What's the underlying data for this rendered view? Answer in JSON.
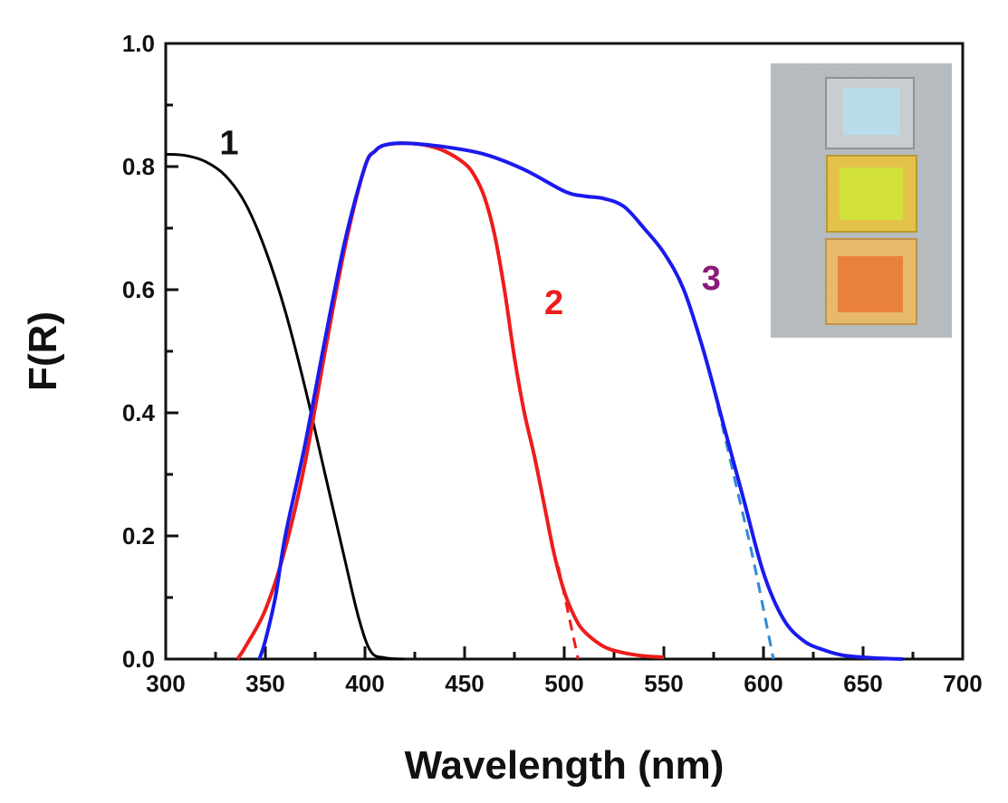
{
  "chart_data": {
    "type": "line",
    "title": "",
    "xlabel": "Wavelength (nm)",
    "ylabel": "F(R)",
    "xlim": [
      300,
      700
    ],
    "ylim": [
      0.0,
      1.0
    ],
    "xticks": [
      "300",
      "350",
      "400",
      "450",
      "500",
      "550",
      "600",
      "650",
      "700"
    ],
    "yticks": [
      "0.0",
      "0.2",
      "0.4",
      "0.6",
      "0.8",
      "1.0"
    ],
    "grid": false,
    "inset": "photo of three sample films (pale blue, yellow, orange), top-right",
    "series": [
      {
        "name": "1",
        "color": "#000000",
        "label_at": [
          327,
          0.82
        ],
        "points": [
          [
            300,
            0.82
          ],
          [
            310,
            0.818
          ],
          [
            320,
            0.808
          ],
          [
            330,
            0.785
          ],
          [
            340,
            0.74
          ],
          [
            350,
            0.665
          ],
          [
            360,
            0.565
          ],
          [
            370,
            0.44
          ],
          [
            380,
            0.3
          ],
          [
            390,
            0.16
          ],
          [
            397,
            0.065
          ],
          [
            403,
            0.012
          ],
          [
            410,
            0.002
          ],
          [
            420,
            0.0
          ]
        ]
      },
      {
        "name": "2",
        "color": "#ee1c1c",
        "label_at": [
          490,
          0.56
        ],
        "points": [
          [
            336,
            0.0
          ],
          [
            340,
            0.02
          ],
          [
            350,
            0.08
          ],
          [
            360,
            0.18
          ],
          [
            370,
            0.32
          ],
          [
            380,
            0.5
          ],
          [
            390,
            0.67
          ],
          [
            400,
            0.8
          ],
          [
            405,
            0.825
          ],
          [
            410,
            0.835
          ],
          [
            420,
            0.838
          ],
          [
            430,
            0.835
          ],
          [
            440,
            0.825
          ],
          [
            450,
            0.805
          ],
          [
            455,
            0.785
          ],
          [
            460,
            0.75
          ],
          [
            465,
            0.69
          ],
          [
            470,
            0.6
          ],
          [
            475,
            0.49
          ],
          [
            480,
            0.4
          ],
          [
            485,
            0.33
          ],
          [
            490,
            0.25
          ],
          [
            495,
            0.17
          ],
          [
            500,
            0.11
          ],
          [
            505,
            0.07
          ],
          [
            510,
            0.045
          ],
          [
            520,
            0.02
          ],
          [
            530,
            0.01
          ],
          [
            540,
            0.005
          ],
          [
            550,
            0.003
          ]
        ],
        "extrapolation": [
          [
            497,
            0.15
          ],
          [
            507,
            0.0
          ]
        ]
      },
      {
        "name": "3",
        "color": "#1a1aee",
        "label_at": [
          569,
          0.6
        ],
        "points": [
          [
            347,
            0.0
          ],
          [
            350,
            0.03
          ],
          [
            355,
            0.1
          ],
          [
            360,
            0.2
          ],
          [
            370,
            0.35
          ],
          [
            380,
            0.52
          ],
          [
            390,
            0.68
          ],
          [
            400,
            0.8
          ],
          [
            405,
            0.825
          ],
          [
            410,
            0.835
          ],
          [
            420,
            0.838
          ],
          [
            440,
            0.832
          ],
          [
            460,
            0.82
          ],
          [
            480,
            0.795
          ],
          [
            500,
            0.76
          ],
          [
            510,
            0.752
          ],
          [
            520,
            0.748
          ],
          [
            530,
            0.735
          ],
          [
            540,
            0.7
          ],
          [
            550,
            0.66
          ],
          [
            560,
            0.6
          ],
          [
            570,
            0.5
          ],
          [
            580,
            0.38
          ],
          [
            590,
            0.26
          ],
          [
            600,
            0.14
          ],
          [
            610,
            0.065
          ],
          [
            620,
            0.03
          ],
          [
            630,
            0.015
          ],
          [
            640,
            0.006
          ],
          [
            650,
            0.003
          ],
          [
            660,
            0.001
          ],
          [
            670,
            0.0
          ]
        ],
        "extrapolation": [
          [
            575,
            0.44
          ],
          [
            585,
            0.3
          ],
          [
            595,
            0.16
          ],
          [
            605,
            0.0
          ]
        ]
      }
    ]
  },
  "colors": {
    "axis": "#111111",
    "label_1": "#111111",
    "label_2": "#ee1c1c",
    "label_3": "#8b1a7a",
    "extrap_2": "#ee1c1c",
    "extrap_3": "#2e8bd6"
  },
  "inset": {
    "films": [
      "pale-blue",
      "yellow",
      "orange"
    ]
  }
}
